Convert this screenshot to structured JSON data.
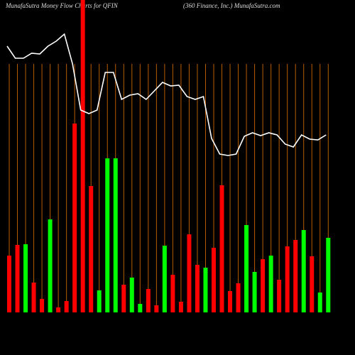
{
  "chart_data": {
    "type": "bar",
    "title": "MunafaSutra  Money Flow  Charts for QFIN",
    "subtitle": "(360  Finance, Inc.) MunafaSutra.com",
    "categories": [
      null,
      null,
      null,
      null,
      null,
      null,
      null,
      null,
      null,
      null,
      null,
      null,
      null,
      null,
      null,
      null,
      null,
      null,
      null,
      null,
      null,
      null,
      null,
      null,
      null,
      null,
      null,
      null,
      null,
      null,
      null,
      null,
      null,
      null,
      null,
      null,
      null,
      null,
      null,
      null
    ],
    "values": [
      80,
      95,
      96,
      42,
      19,
      131,
      7,
      16,
      266,
      445,
      178,
      31,
      217,
      217,
      39,
      49,
      12,
      33,
      10,
      94,
      53,
      15,
      110,
      67,
      63,
      91,
      179,
      30,
      41,
      123,
      57,
      75,
      80,
      46,
      93,
      102,
      116,
      79,
      28,
      105
    ],
    "colors": [
      "#ff0000",
      "#ff0000",
      "#00ff00",
      "#ff0000",
      "#ff0000",
      "#00ff00",
      "#ff0000",
      "#ff0000",
      "#ff0000",
      "#ff0000",
      "#ff0000",
      "#00ff00",
      "#00ff00",
      "#00ff00",
      "#ff0000",
      "#00ff00",
      "#00ff00",
      "#ff0000",
      "#ff0000",
      "#00ff00",
      "#ff0000",
      "#ff0000",
      "#ff0000",
      "#ff0000",
      "#00ff00",
      "#ff0000",
      "#ff0000",
      "#ff0000",
      "#ff0000",
      "#00ff00",
      "#00ff00",
      "#ff0000",
      "#00ff00",
      "#ff0000",
      "#ff0000",
      "#ff0000",
      "#00ff00",
      "#ff0000",
      "#00ff00",
      "#00ff00"
    ],
    "line_values": [
      375,
      358,
      358,
      365,
      364,
      375,
      382,
      392,
      350,
      285,
      280,
      285,
      338,
      338,
      300,
      306,
      308,
      300,
      312,
      324,
      319,
      320,
      304,
      300,
      304,
      245,
      223,
      221,
      223,
      248,
      253,
      249,
      253,
      250,
      237,
      233,
      250,
      244,
      243,
      250
    ],
    "line_color": "#ffffff",
    "grid_color": "#b85c00",
    "ylim": [
      0,
      440
    ]
  }
}
